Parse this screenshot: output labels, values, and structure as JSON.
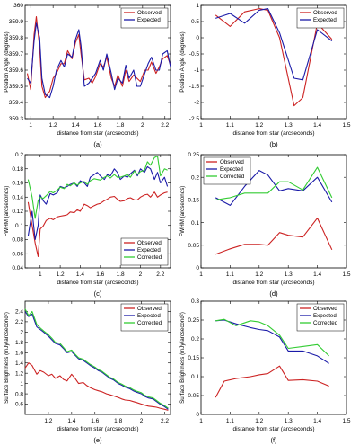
{
  "chart_data": [
    {
      "panel": "a",
      "caption": "(a)",
      "type": "line",
      "xlabel": "distance from star (arcseconds)",
      "ylabel": "Position Angle (degrees)",
      "xlim": [
        0.95,
        2.25
      ],
      "ylim": [
        359.3,
        360
      ],
      "xticks": [
        "1",
        "1.2",
        "1.4",
        "1.6",
        "1.8",
        "2",
        "2.2"
      ],
      "yticks": [
        "359.3",
        "359.4",
        "359.5",
        "359.6",
        "359.7",
        "359.8",
        "359.9",
        "360"
      ],
      "legend": "top-right",
      "x": [
        0.97,
        1.0,
        1.03,
        1.05,
        1.08,
        1.1,
        1.13,
        1.17,
        1.2,
        1.23,
        1.27,
        1.3,
        1.33,
        1.37,
        1.4,
        1.43,
        1.45,
        1.48,
        1.52,
        1.55,
        1.58,
        1.62,
        1.65,
        1.68,
        1.72,
        1.75,
        1.78,
        1.82,
        1.85,
        1.88,
        1.92,
        1.95,
        1.98,
        2.02,
        2.05,
        2.08,
        2.12,
        2.15,
        2.18,
        2.22,
        2.25
      ],
      "series": [
        {
          "name": "Observed",
          "color": "#cc2222",
          "values": [
            359.58,
            359.48,
            359.82,
            359.93,
            359.74,
            359.5,
            359.43,
            359.47,
            359.55,
            359.58,
            359.64,
            359.64,
            359.72,
            359.67,
            359.77,
            359.82,
            359.7,
            359.54,
            359.55,
            359.52,
            359.56,
            359.64,
            359.62,
            359.68,
            359.55,
            359.5,
            359.57,
            359.5,
            359.6,
            359.53,
            359.57,
            359.55,
            359.53,
            359.6,
            359.6,
            359.65,
            359.58,
            359.62,
            359.67,
            359.69,
            359.63
          ]
        },
        {
          "name": "Expected",
          "color": "#1a1aa8",
          "values": [
            359.55,
            359.52,
            359.78,
            359.89,
            359.8,
            359.55,
            359.45,
            359.43,
            359.5,
            359.6,
            359.66,
            359.62,
            359.7,
            359.68,
            359.79,
            359.85,
            359.75,
            359.5,
            359.52,
            359.55,
            359.58,
            359.66,
            359.6,
            359.7,
            359.58,
            359.48,
            359.55,
            359.52,
            359.63,
            359.55,
            359.6,
            359.5,
            359.5,
            359.58,
            359.64,
            359.68,
            359.6,
            359.6,
            359.7,
            359.72,
            359.62
          ]
        }
      ]
    },
    {
      "panel": "b",
      "caption": "(b)",
      "type": "line",
      "xlabel": "distance from star (arcseconds)",
      "ylabel": "Position Angle (degrees)",
      "xlim": [
        1.0,
        1.5
      ],
      "ylim": [
        -2.5,
        1.0
      ],
      "xticks": [
        "1",
        "1.1",
        "1.2",
        "1.3",
        "1.4",
        "1.5"
      ],
      "yticks": [
        "-2.5",
        "-2",
        "-1.5",
        "-1",
        "-0.5",
        "0",
        "0.5",
        "1"
      ],
      "legend": "top-right",
      "x": [
        1.05,
        1.1,
        1.15,
        1.2,
        1.23,
        1.27,
        1.32,
        1.35,
        1.4,
        1.45
      ],
      "series": [
        {
          "name": "Observed",
          "color": "#cc2222",
          "values": [
            0.7,
            0.35,
            0.8,
            0.9,
            0.85,
            0.0,
            -2.1,
            -1.85,
            0.45,
            -0.05
          ]
        },
        {
          "name": "Expected",
          "color": "#1a1aa8",
          "values": [
            0.6,
            0.75,
            0.45,
            0.85,
            0.9,
            0.15,
            -1.25,
            -1.3,
            0.25,
            -0.1
          ]
        }
      ]
    },
    {
      "panel": "c",
      "caption": "(c)",
      "type": "line",
      "xlabel": "distance from star (arcseconds)",
      "ylabel": "FWHM (arcseconds)",
      "xlim": [
        0.85,
        2.3
      ],
      "ylim": [
        0.04,
        0.2
      ],
      "xticks": [
        "1",
        "1.2",
        "1.4",
        "1.6",
        "1.8",
        "2",
        "2.2"
      ],
      "yticks": [
        "0.04",
        "0.06",
        "0.08",
        "0.1",
        "0.12",
        "0.14",
        "0.16",
        "0.18",
        "0.2"
      ],
      "legend": "bottom-right",
      "x": [
        0.88,
        0.92,
        0.95,
        0.98,
        1.0,
        1.03,
        1.06,
        1.1,
        1.13,
        1.17,
        1.2,
        1.24,
        1.27,
        1.3,
        1.34,
        1.37,
        1.4,
        1.44,
        1.47,
        1.5,
        1.54,
        1.57,
        1.6,
        1.64,
        1.67,
        1.7,
        1.74,
        1.77,
        1.8,
        1.84,
        1.87,
        1.9,
        1.94,
        1.97,
        2.0,
        2.04,
        2.07,
        2.1,
        2.14,
        2.17,
        2.2,
        2.24,
        2.27
      ],
      "series": [
        {
          "name": "Observed",
          "color": "#cc2222",
          "values": [
            0.133,
            0.1,
            0.075,
            0.056,
            0.095,
            0.099,
            0.107,
            0.11,
            0.108,
            0.112,
            0.113,
            0.114,
            0.115,
            0.119,
            0.118,
            0.122,
            0.12,
            0.13,
            0.128,
            0.125,
            0.128,
            0.13,
            0.131,
            0.135,
            0.137,
            0.14,
            0.141,
            0.137,
            0.134,
            0.135,
            0.138,
            0.139,
            0.136,
            0.136,
            0.14,
            0.143,
            0.144,
            0.14,
            0.147,
            0.14,
            0.143,
            0.146,
            0.147
          ]
        },
        {
          "name": "Expected",
          "color": "#1a1aa8",
          "values": [
            0.085,
            0.12,
            0.08,
            0.1,
            0.143,
            0.135,
            0.13,
            0.145,
            0.143,
            0.146,
            0.155,
            0.153,
            0.155,
            0.158,
            0.16,
            0.155,
            0.163,
            0.16,
            0.155,
            0.168,
            0.172,
            0.175,
            0.17,
            0.165,
            0.172,
            0.17,
            0.18,
            0.175,
            0.165,
            0.17,
            0.168,
            0.173,
            0.178,
            0.17,
            0.18,
            0.175,
            0.183,
            0.18,
            0.165,
            0.175,
            0.16,
            0.168,
            0.155
          ]
        },
        {
          "name": "Corrected",
          "color": "#33cc33",
          "values": [
            0.165,
            0.14,
            0.11,
            0.135,
            0.14,
            0.138,
            0.142,
            0.148,
            0.146,
            0.15,
            0.154,
            0.152,
            0.158,
            0.156,
            0.16,
            0.157,
            0.16,
            0.162,
            0.158,
            0.163,
            0.166,
            0.165,
            0.164,
            0.168,
            0.17,
            0.167,
            0.172,
            0.168,
            0.168,
            0.17,
            0.172,
            0.168,
            0.177,
            0.172,
            0.176,
            0.178,
            0.19,
            0.185,
            0.196,
            0.198,
            0.17,
            0.18,
            0.178
          ]
        }
      ]
    },
    {
      "panel": "d",
      "caption": "(d)",
      "type": "line",
      "xlabel": "distance from star (arcseconds)",
      "ylabel": "FWHM (arcseconds)",
      "xlim": [
        1.0,
        1.5
      ],
      "ylim": [
        0.0,
        0.25
      ],
      "xticks": [
        "1",
        "1.1",
        "1.2",
        "1.3",
        "1.4",
        "1.5"
      ],
      "yticks": [
        "0",
        "0.05",
        "0.1",
        "0.15",
        "0.2",
        "0.25"
      ],
      "legend": "top-left",
      "x": [
        1.05,
        1.1,
        1.15,
        1.2,
        1.23,
        1.27,
        1.3,
        1.35,
        1.4,
        1.45
      ],
      "series": [
        {
          "name": "Observed",
          "color": "#cc2222",
          "values": [
            0.03,
            0.042,
            0.052,
            0.052,
            0.05,
            0.078,
            0.072,
            0.068,
            0.11,
            0.04
          ]
        },
        {
          "name": "Expected",
          "color": "#1a1aa8",
          "values": [
            0.155,
            0.138,
            0.18,
            0.215,
            0.205,
            0.17,
            0.175,
            0.17,
            0.2,
            0.145
          ]
        },
        {
          "name": "Corrected",
          "color": "#33cc33",
          "values": [
            0.15,
            0.155,
            0.165,
            0.165,
            0.165,
            0.19,
            0.19,
            0.172,
            0.222,
            0.155
          ]
        }
      ]
    },
    {
      "panel": "e",
      "caption": "(e)",
      "type": "line",
      "xlabel": "distance from star (arcseconds)",
      "ylabel": "Surface Brightness (mJy/arcsecond²)",
      "xlim": [
        1.0,
        2.25
      ],
      "ylim": [
        0.4,
        2.6
      ],
      "xticks": [
        "1.2",
        "1.4",
        "1.6",
        "1.8",
        "2",
        "2.2"
      ],
      "yticks": [
        "0.6",
        "0.8",
        "1",
        "1.2",
        "1.4",
        "1.6",
        "1.8",
        "2",
        "2.2",
        "2.4"
      ],
      "legend": "top-right",
      "x": [
        1.0,
        1.03,
        1.06,
        1.1,
        1.13,
        1.16,
        1.2,
        1.23,
        1.26,
        1.3,
        1.33,
        1.36,
        1.4,
        1.43,
        1.46,
        1.5,
        1.53,
        1.56,
        1.6,
        1.63,
        1.66,
        1.7,
        1.73,
        1.76,
        1.8,
        1.83,
        1.86,
        1.9,
        1.93,
        1.96,
        2.0,
        2.03,
        2.06,
        2.1,
        2.13,
        2.16,
        2.2,
        2.23
      ],
      "series": [
        {
          "name": "Observed",
          "color": "#cc2222",
          "values": [
            1.3,
            1.4,
            1.35,
            1.18,
            1.25,
            1.22,
            1.15,
            1.18,
            1.1,
            1.15,
            1.08,
            1.05,
            1.18,
            1.1,
            1.0,
            1.02,
            0.96,
            0.92,
            0.88,
            0.86,
            0.84,
            0.8,
            0.78,
            0.76,
            0.73,
            0.7,
            0.68,
            0.67,
            0.65,
            0.63,
            0.6,
            0.58,
            0.56,
            0.55,
            0.54,
            0.52,
            0.5,
            0.48
          ]
        },
        {
          "name": "Expected",
          "color": "#1a1aa8",
          "values": [
            2.4,
            2.3,
            2.35,
            2.1,
            2.05,
            2.0,
            1.92,
            1.85,
            1.78,
            1.75,
            1.68,
            1.6,
            1.62,
            1.55,
            1.48,
            1.45,
            1.4,
            1.35,
            1.3,
            1.25,
            1.22,
            1.15,
            1.1,
            1.07,
            1.0,
            0.97,
            0.93,
            0.9,
            0.86,
            0.83,
            0.8,
            0.75,
            0.72,
            0.7,
            0.65,
            0.6,
            0.55,
            0.5
          ]
        },
        {
          "name": "Corrected",
          "color": "#33cc33",
          "values": [
            2.45,
            2.32,
            2.4,
            2.15,
            2.08,
            2.02,
            1.95,
            1.88,
            1.8,
            1.78,
            1.7,
            1.62,
            1.65,
            1.57,
            1.5,
            1.47,
            1.42,
            1.37,
            1.32,
            1.27,
            1.24,
            1.17,
            1.12,
            1.09,
            1.02,
            0.99,
            0.95,
            0.92,
            0.88,
            0.85,
            0.82,
            0.77,
            0.74,
            0.72,
            0.67,
            0.62,
            0.57,
            0.52
          ]
        }
      ]
    },
    {
      "panel": "f",
      "caption": "(f)",
      "type": "line",
      "xlabel": "distance from star (arcseconds)",
      "ylabel": "Surface Brightness (mJy/arcsecond²)",
      "xlim": [
        1.0,
        1.5
      ],
      "ylim": [
        0.0,
        0.3
      ],
      "xticks": [
        "1",
        "1.1",
        "1.2",
        "1.3",
        "1.4",
        "1.5"
      ],
      "yticks": [
        "0",
        "0.05",
        "0.1",
        "0.15",
        "0.2",
        "0.25",
        "0.3"
      ],
      "legend": "top-right",
      "x": [
        1.05,
        1.08,
        1.12,
        1.17,
        1.2,
        1.23,
        1.27,
        1.3,
        1.35,
        1.4,
        1.44
      ],
      "series": [
        {
          "name": "Observed",
          "color": "#cc2222",
          "values": [
            0.045,
            0.088,
            0.095,
            0.1,
            0.105,
            0.108,
            0.128,
            0.09,
            0.092,
            0.088,
            0.075
          ]
        },
        {
          "name": "Expected",
          "color": "#1a1aa8",
          "values": [
            0.248,
            0.25,
            0.24,
            0.23,
            0.225,
            0.222,
            0.205,
            0.168,
            0.168,
            0.155,
            0.135
          ]
        },
        {
          "name": "Corrected",
          "color": "#33cc33",
          "values": [
            0.248,
            0.252,
            0.235,
            0.248,
            0.245,
            0.235,
            0.21,
            0.175,
            0.18,
            0.185,
            0.155
          ]
        }
      ]
    }
  ]
}
